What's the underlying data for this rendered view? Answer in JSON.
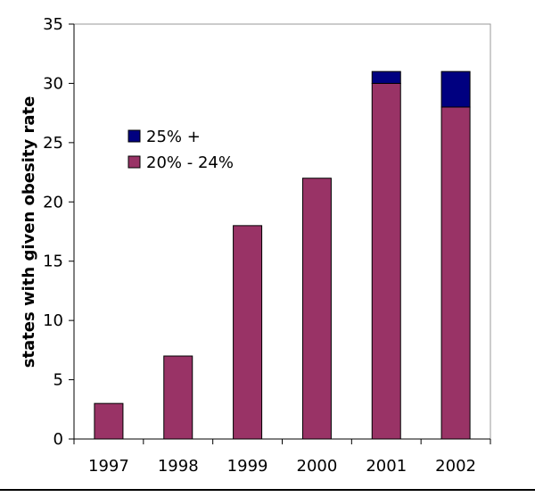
{
  "chart_data": {
    "type": "bar",
    "stacked": true,
    "categories": [
      "1997",
      "1998",
      "1999",
      "2000",
      "2001",
      "2002"
    ],
    "series": [
      {
        "name": "20% - 24%",
        "values": [
          3,
          7,
          18,
          22,
          30,
          28
        ],
        "color": "#993366"
      },
      {
        "name": "25% +",
        "values": [
          0,
          0,
          0,
          0,
          1,
          3
        ],
        "color": "#000080"
      }
    ],
    "xlabel": "",
    "ylabel": "states with given obesity rate",
    "ylim": [
      0,
      35
    ],
    "yticks": [
      0,
      5,
      10,
      15,
      20,
      25,
      30,
      35
    ],
    "grid": false,
    "legend": {
      "placement": "upper-left, inside plot",
      "order": [
        "25% +",
        "20% - 24%"
      ]
    }
  }
}
